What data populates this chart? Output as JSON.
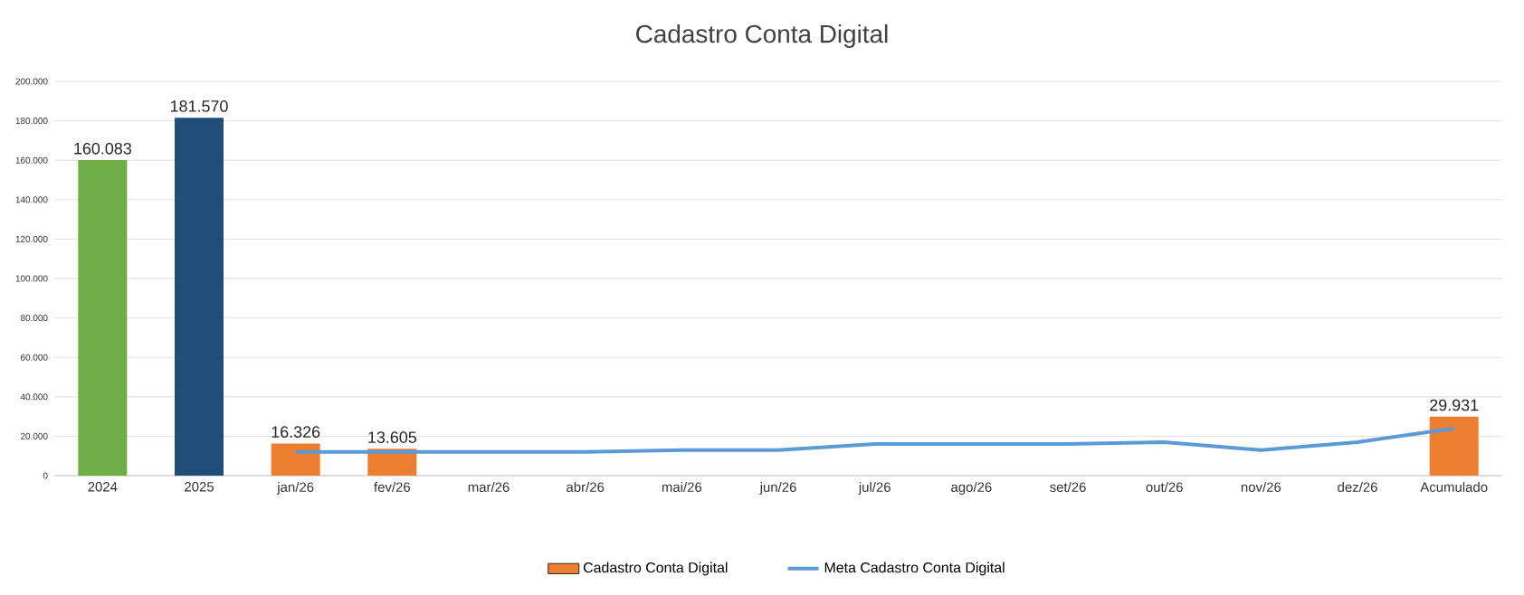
{
  "chart_data": {
    "type": "bar",
    "title": "Cadastro Conta Digital",
    "categories": [
      "2024",
      "2025",
      "jan/26",
      "fev/26",
      "mar/26",
      "abr/26",
      "mai/26",
      "jun/26",
      "jul/26",
      "ago/26",
      "set/26",
      "out/26",
      "nov/26",
      "dez/26",
      "Acumulado"
    ],
    "series": [
      {
        "name": "Cadastro Conta Digital",
        "color": "#ed7d31",
        "colors": [
          "#70ad47",
          "#1f4e79",
          "#ed7d31",
          "#ed7d31",
          "#ed7d31",
          "#ed7d31",
          "#ed7d31",
          "#ed7d31",
          "#ed7d31",
          "#ed7d31",
          "#ed7d31",
          "#ed7d31",
          "#ed7d31",
          "#ed7d31",
          "#ed7d31"
        ],
        "values": [
          160083,
          181570,
          16326,
          13605,
          null,
          null,
          null,
          null,
          null,
          null,
          null,
          null,
          null,
          null,
          29931
        ],
        "value_labels": [
          "160.083",
          "181.570",
          "16.326",
          "13.605",
          null,
          null,
          null,
          null,
          null,
          null,
          null,
          null,
          null,
          null,
          "29.931"
        ]
      },
      {
        "name": "Meta Cadastro Conta Digital",
        "type": "line",
        "color": "#5b9bd5",
        "values": [
          null,
          null,
          12000,
          12000,
          12000,
          12000,
          13000,
          13000,
          16000,
          16000,
          16000,
          17000,
          13000,
          17000,
          24000
        ]
      }
    ],
    "ylim": [
      0,
      200000
    ],
    "yticks": [
      {
        "value": 0,
        "label": "0"
      },
      {
        "value": 20000,
        "label": "20.000"
      },
      {
        "value": 40000,
        "label": "40.000"
      },
      {
        "value": 60000,
        "label": "60.000"
      },
      {
        "value": 80000,
        "label": "80.000"
      },
      {
        "value": 100000,
        "label": "100.000"
      },
      {
        "value": 120000,
        "label": "120.000"
      },
      {
        "value": 140000,
        "label": "140.000"
      },
      {
        "value": 160000,
        "label": "160.000"
      },
      {
        "value": 180000,
        "label": "180.000"
      },
      {
        "value": 200000,
        "label": "200.000"
      }
    ],
    "grid": "y",
    "legend": "bottom",
    "marker": "none"
  }
}
